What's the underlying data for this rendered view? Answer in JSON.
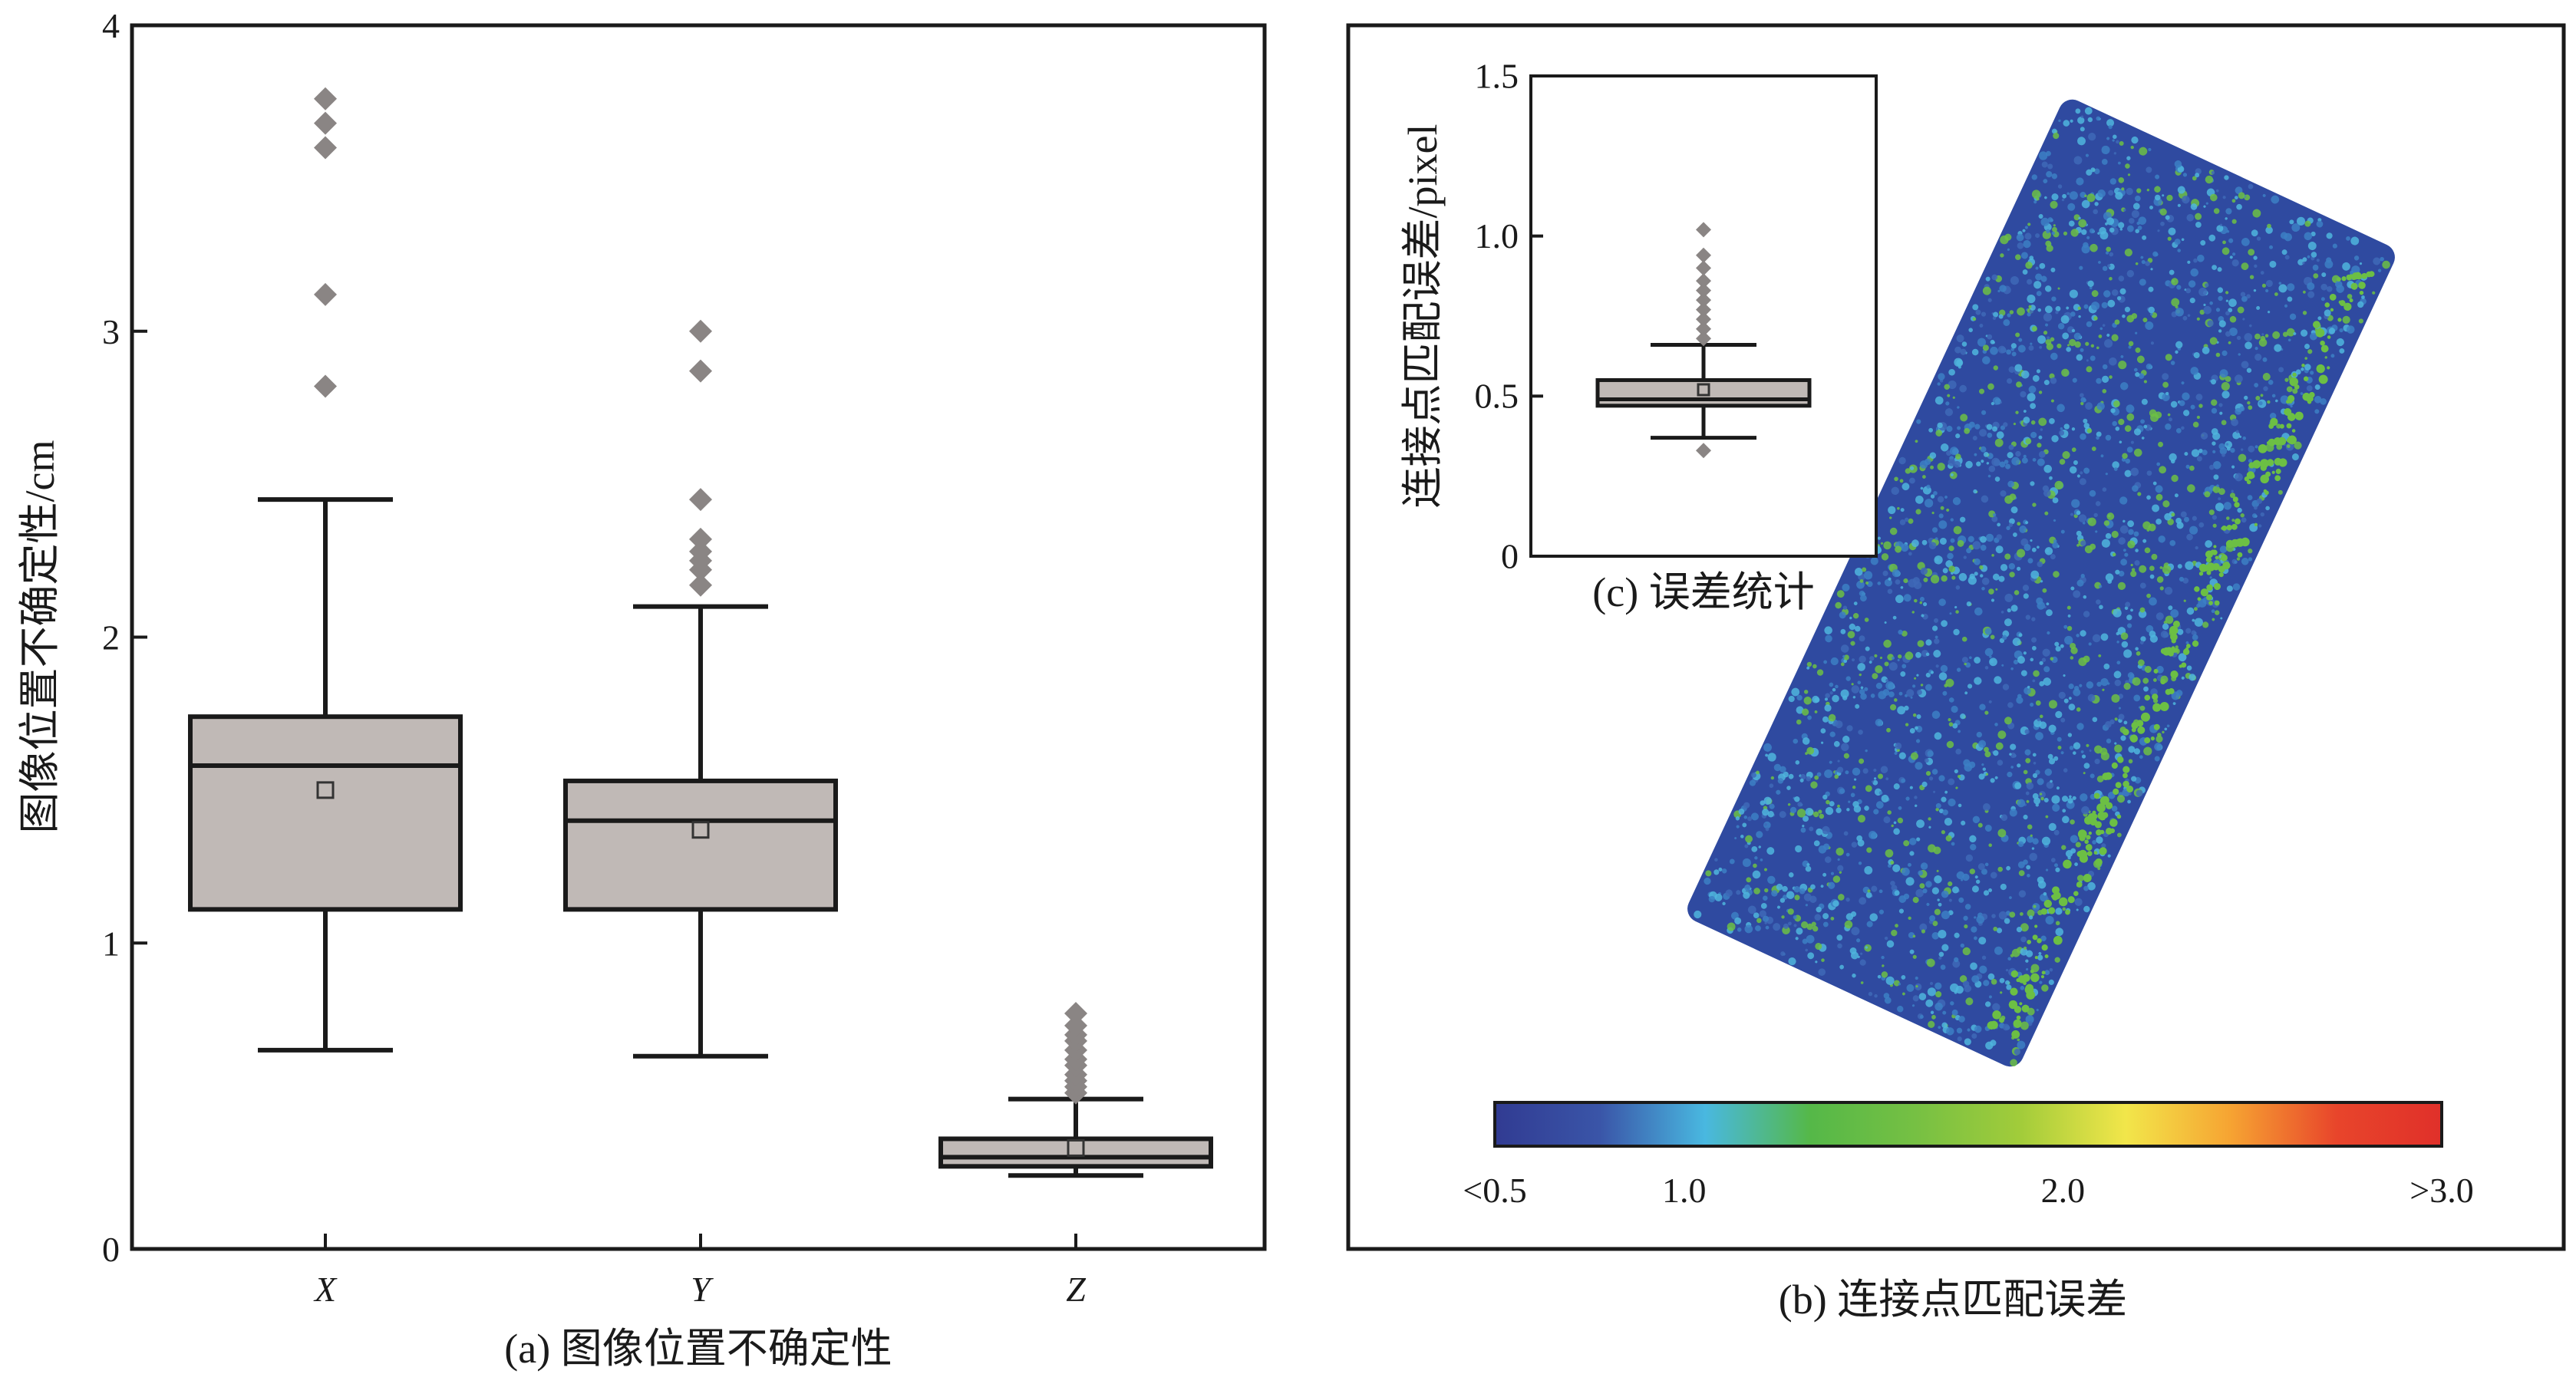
{
  "chart_data": [
    {
      "id": "a",
      "type": "box",
      "caption": "(a) 图像位置不确定性",
      "ylabel": "图像位置不确定性/cm",
      "ylim": [
        0,
        4
      ],
      "yticks": [
        "0",
        "1",
        "2",
        "3",
        "4"
      ],
      "categories": [
        "X",
        "Y",
        "Z"
      ],
      "box_color": "#c0b9b6",
      "outlier_color": "#8a8584",
      "boxes": [
        {
          "name": "X",
          "whisker_low": 0.65,
          "q1": 1.11,
          "median": 1.58,
          "q3": 1.74,
          "whisker_high": 2.45,
          "mean": 1.5,
          "outliers": [
            2.82,
            3.12,
            3.6,
            3.68,
            3.76
          ]
        },
        {
          "name": "Y",
          "whisker_low": 0.63,
          "q1": 1.11,
          "median": 1.4,
          "q3": 1.53,
          "whisker_high": 2.1,
          "mean": 1.37,
          "outliers": [
            2.17,
            2.22,
            2.25,
            2.28,
            2.32,
            2.45,
            2.87,
            3.0
          ]
        },
        {
          "name": "Z",
          "whisker_low": 0.24,
          "q1": 0.27,
          "median": 0.3,
          "q3": 0.36,
          "whisker_high": 0.49,
          "mean": 0.33,
          "outliers": [
            0.51,
            0.53,
            0.55,
            0.57,
            0.6,
            0.62,
            0.65,
            0.68,
            0.7,
            0.73,
            0.77
          ]
        }
      ]
    },
    {
      "id": "c",
      "type": "box",
      "caption": "(c) 误差统计",
      "ylabel": "连接点匹配误差/pixel",
      "ylim": [
        0,
        1.5
      ],
      "yticks": [
        "0",
        "0.5",
        "1.0",
        "1.5"
      ],
      "box_color": "#c0b9b6",
      "outlier_color": "#8a8584",
      "boxes": [
        {
          "name": "",
          "whisker_low": 0.37,
          "q1": 0.47,
          "median": 0.49,
          "q3": 0.55,
          "whisker_high": 0.66,
          "mean": 0.52,
          "outliers": [
            0.33,
            0.68,
            0.71,
            0.74,
            0.77,
            0.8,
            0.83,
            0.86,
            0.9,
            0.94,
            1.02
          ]
        }
      ]
    },
    {
      "id": "b",
      "type": "heatmap",
      "caption": "(b) 连接点匹配误差",
      "colorbar": {
        "min": 0.5,
        "max": 3.0,
        "tick_labels": [
          "<0.5",
          "1.0",
          "2.0",
          ">3.0"
        ],
        "tick_values": [
          0.5,
          1.0,
          2.0,
          3.0
        ],
        "stops": [
          "#313b92",
          "#3a55a8",
          "#49b8e0",
          "#55b848",
          "#76c043",
          "#a2cc3a",
          "#f2e64a",
          "#f6a332",
          "#e8452b",
          "#e0302a"
        ]
      },
      "palette": {
        "base": "#2f4aa0",
        "cyan": "#4fb5dd",
        "green": "#6cbf44",
        "teal": "#3c7fc4"
      }
    }
  ]
}
